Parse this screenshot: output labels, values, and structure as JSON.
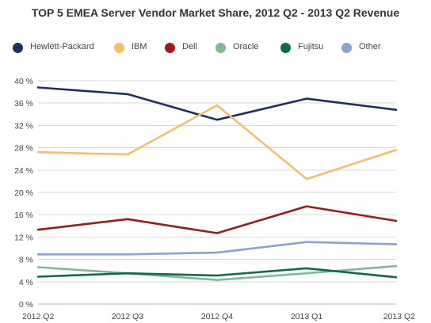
{
  "chart_data": {
    "type": "line",
    "title": "TOP 5 EMEA Server Vendor Market Share, 2012 Q2 - 2013 Q2 Revenue",
    "xlabel": "",
    "ylabel": "",
    "categories": [
      "2012 Q2",
      "2012 Q3",
      "2012 Q4",
      "2013 Q1",
      "2013 Q2"
    ],
    "ylim": [
      0,
      40
    ],
    "yticks": [
      0,
      4,
      8,
      12,
      16,
      20,
      24,
      28,
      32,
      36,
      40
    ],
    "y_tick_labels": [
      "0 %",
      "4 %",
      "8 %",
      "12 %",
      "16 %",
      "20 %",
      "24 %",
      "28 %",
      "32 %",
      "36 %",
      "40 %"
    ],
    "grid": "horizontal",
    "legend_position": "top",
    "series": [
      {
        "name": "Hewlett-Packard",
        "color": "#1f2f5e",
        "values": [
          38.8,
          37.6,
          33.0,
          36.8,
          34.8
        ]
      },
      {
        "name": "IBM",
        "color": "#f7be68",
        "values": [
          27.2,
          26.8,
          35.6,
          22.4,
          27.6
        ]
      },
      {
        "name": "Dell",
        "color": "#9b1b1b",
        "values": [
          13.3,
          15.2,
          12.7,
          17.5,
          14.9
        ]
      },
      {
        "name": "Oracle",
        "color": "#7fb894",
        "values": [
          6.6,
          5.5,
          4.3,
          5.5,
          6.8
        ]
      },
      {
        "name": "Fujitsu",
        "color": "#0d6b47",
        "values": [
          4.9,
          5.5,
          5.1,
          6.4,
          4.8
        ]
      },
      {
        "name": "Other",
        "color": "#8aa2d6",
        "values": [
          8.9,
          8.9,
          9.2,
          11.1,
          10.7
        ]
      }
    ]
  }
}
